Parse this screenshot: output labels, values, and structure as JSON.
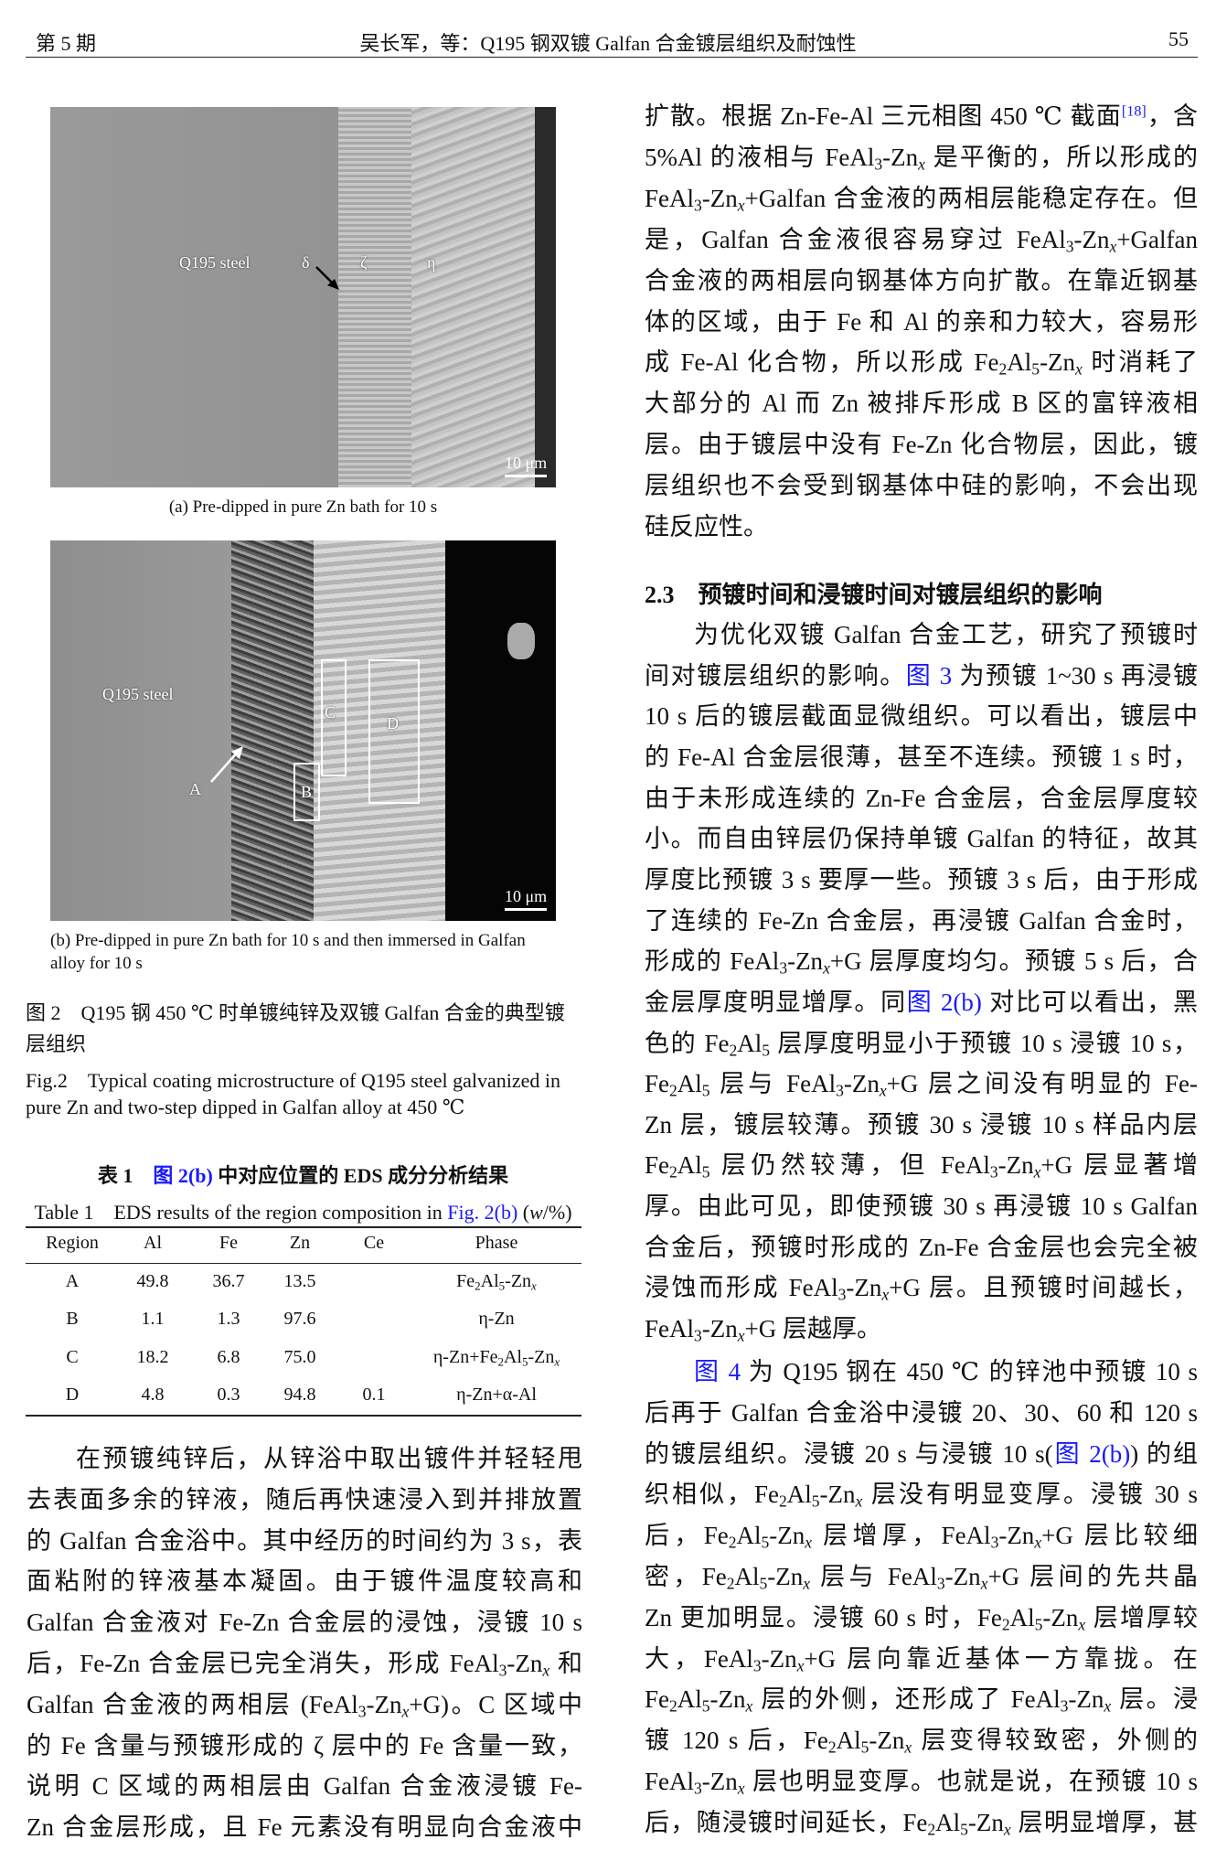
{
  "header": {
    "issue": "第 5 期",
    "title": "吴长军，等：Q195 钢双镀 Galfan 合金镀层组织及耐蚀性",
    "page_number": "55"
  },
  "figure2": {
    "panel_a": {
      "labels": {
        "steel": "Q195 steel",
        "delta": "δ",
        "zeta": "ζ",
        "eta": "η"
      },
      "scale_bar": "10 μm",
      "caption": "(a) Pre-dipped in pure Zn bath for 10 s"
    },
    "panel_b": {
      "labels": {
        "steel": "Q195 steel",
        "A": "A",
        "B": "B",
        "C": "C",
        "D": "D"
      },
      "scale_bar": "10 μm",
      "caption_lines": [
        "(b) Pre-dipped in pure Zn bath for 10 s and then immersed in Galfan",
        "alloy for 10 s"
      ]
    },
    "caption_cn": [
      "图 2　Q195 钢 450 ℃ 时单镀纯锌及双镀 Galfan 合金的典型镀",
      "层组织"
    ],
    "caption_en": [
      "Fig.2　Typical coating microstructure of Q195 steel galvanized in",
      "pure Zn and two-step dipped in Galfan alloy at 450 ℃"
    ]
  },
  "table1": {
    "title_cn": "表 1　[[图 2(b)]] 中对应位置的 EDS 成分分析结果",
    "title_en": "Table 1　EDS results of the region composition in [[Fig. 2(b)]] (*w*/%)",
    "columns": [
      "Region",
      "Al",
      "Fe",
      "Zn",
      "Ce",
      "Phase"
    ],
    "rows": [
      [
        "A",
        "49.8",
        "36.7",
        "13.5",
        "",
        "Fe_2Al_5-Zn_x"
      ],
      [
        "B",
        "1.1",
        "1.3",
        "97.6",
        "",
        "η-Zn"
      ],
      [
        "C",
        "18.2",
        "6.8",
        "75.0",
        "",
        "η-Zn+Fe_2Al_5-Zn_x"
      ],
      [
        "D",
        "4.8",
        "0.3",
        "94.8",
        "0.1",
        "η-Zn+α-Al"
      ]
    ]
  },
  "left_column": {
    "paragraph_lines": [
      "在预镀纯锌后，从锌浴中取出镀件并轻轻甩",
      "去表面多余的锌液，随后再快速浸入到并排放置",
      "的 Galfan 合金浴中。其中经历的时间约为 3 s，表",
      "面粘附的锌液基本凝固。由于镀件温度较高和",
      "Galfan 合金液对 Fe-Zn 合金层的浸蚀，浸镀 10 s",
      "后，Fe-Zn 合金层已完全消失，形成 FeAl_3-Zn_x 和",
      "Galfan 合金液的两相层 (FeAl_3-Zn_x+G)。C 区域中",
      "的 Fe 含量与预镀形成的 ζ 层中的 Fe 含量一致，",
      "说明 C 区域的两相层由 Galfan 合金液浸镀 Fe-",
      "Zn 合金层形成，且 Fe 元素没有明显向合金液中"
    ]
  },
  "right_column": {
    "paragraph1_lines": [
      "扩散。根据 Zn-Fe-Al 三元相图 450 ℃ 截面^{[18]}，含",
      "5%Al 的液相与 FeAl_3-Zn_x 是平衡的，所以形成的",
      "FeAl_3-Zn_x+Galfan 合金液的两相层能稳定存在。但",
      "是，Galfan 合金液很容易穿过 FeAl_3-Zn_x+Galfan",
      "合金液的两相层向钢基体方向扩散。在靠近钢基",
      "体的区域，由于 Fe 和 Al 的亲和力较大，容易形",
      "成 Fe-Al 化合物，所以形成 Fe_2Al_5-Zn_x 时消耗了",
      "大部分的 Al 而 Zn 被排斥形成 B 区的富锌液相",
      "层。由于镀层中没有 Fe-Zn 化合物层，因此，镀",
      "层组织也不会受到钢基体中硅的影响，不会出现",
      "硅反应性。"
    ],
    "section_heading": {
      "number": "2.3",
      "title": "预镀时间和浸镀时间对镀层组织的影响"
    },
    "paragraph2_lines": [
      "为优化双镀 Galfan 合金工艺，研究了预镀时",
      "间对镀层组织的影响。[[图 3]] 为预镀 1~30 s 再浸镀",
      "10 s 后的镀层截面显微组织。可以看出，镀层中",
      "的 Fe-Al 合金层很薄，甚至不连续。预镀 1 s 时，",
      "由于未形成连续的 Zn-Fe 合金层，合金层厚度较",
      "小。而自由锌层仍保持单镀 Galfan 的特征，故其",
      "厚度比预镀 3 s 要厚一些。预镀 3 s 后，由于形成",
      "了连续的 Fe-Zn 合金层，再浸镀 Galfan 合金时，",
      "形成的 FeAl_3-Zn_x+G 层厚度均匀。预镀 5 s 后，合",
      "金层厚度明显增厚。同[[图 2(b)]] 对比可以看出，黑",
      "色的 Fe_2Al_5 层厚度明显小于预镀 10 s 浸镀 10 s，",
      "Fe_2Al_5 层与 FeAl_3-Zn_x+G 层之间没有明显的 Fe-",
      "Zn 层，镀层较薄。预镀 30 s 浸镀 10 s 样品内层",
      "Fe_2Al_5 层仍然较薄，但 FeAl_3-Zn_x+G 层显著增",
      "厚。由此可见，即使预镀 30 s 再浸镀 10 s Galfan",
      "合金后，预镀时形成的 Zn-Fe 合金层也会完全被",
      "浸蚀而形成 FeAl_3-Zn_x+G 层。且预镀时间越长，",
      "FeAl_3-Zn_x+G 层越厚。"
    ],
    "paragraph3_lines": [
      "[[图 4]] 为 Q195 钢在 450 ℃ 的锌池中预镀 10 s",
      "后再于 Galfan 合金浴中浸镀 20、30、60 和 120 s",
      "的镀层组织。浸镀 20 s 与浸镀 10 s([[图 2(b)]]) 的组",
      "织相似，Fe_2Al_5-Zn_x 层没有明显变厚。浸镀 30 s",
      "后，Fe_2Al_5-Zn_x 层增厚，FeAl_3-Zn_x+G 层比较细",
      "密，Fe_2Al_5-Zn_x 层与 FeAl_3-Zn_x+G 层间的先共晶",
      "Zn 更加明显。浸镀 60 s 时，Fe_2Al_5-Zn_x 层增厚较",
      "大，FeAl_3-Zn_x+G 层向靠近基体一方靠拢。在",
      "Fe_2Al_5-Zn_x 层的外侧，还形成了 FeAl_3-Zn_x 层。浸",
      "镀 120 s 后，Fe_2Al_5-Zn_x 层变得较致密，外侧的",
      "FeAl_3-Zn_x 层也明显变厚。也就是说，在预镀 10 s",
      "后，随浸镀时间延长，Fe_2Al_5-Zn_x 层明显增厚，甚"
    ]
  },
  "colors": {
    "link": "#1a1aff"
  }
}
